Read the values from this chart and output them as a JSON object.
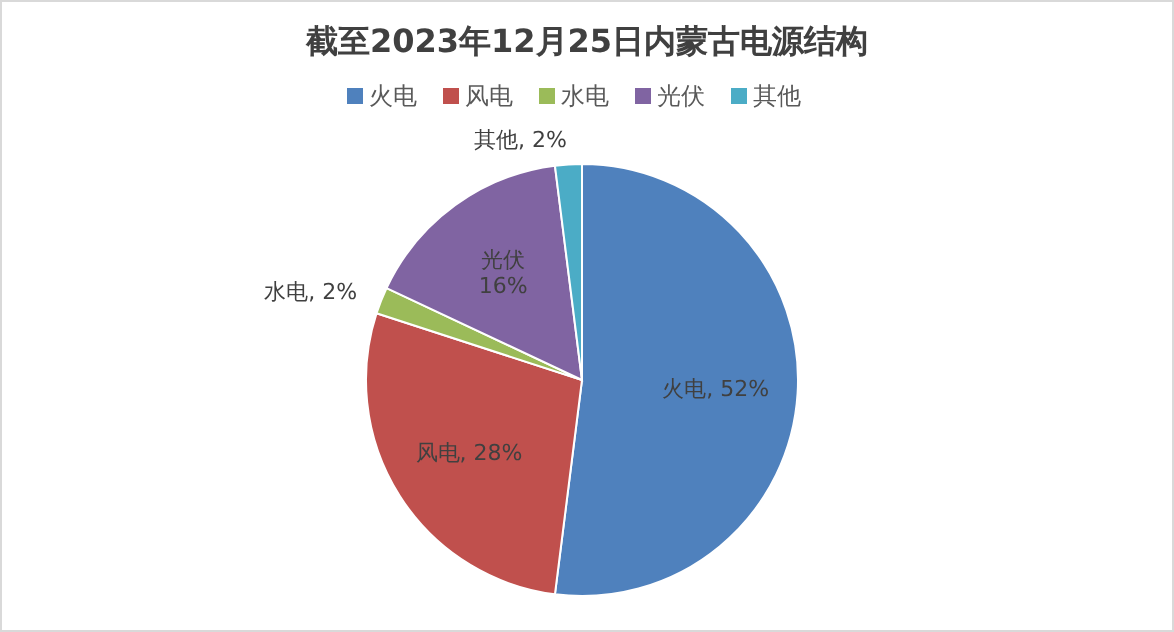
{
  "chart_data": {
    "type": "pie",
    "title": "截至2023年12月25日内蒙古电源结构",
    "categories": [
      "火电",
      "风电",
      "水电",
      "光伏",
      "其他"
    ],
    "values": [
      52,
      28,
      2,
      16,
      2
    ],
    "value_labels": [
      "火电, 52%",
      "风电, 28%",
      "水电, 2%",
      "光伏\n16%",
      "其他, 2%"
    ],
    "colors": [
      "#4f81bd",
      "#c0504d",
      "#9bbb59",
      "#8064a2",
      "#4bacc6"
    ],
    "legend": "top"
  }
}
